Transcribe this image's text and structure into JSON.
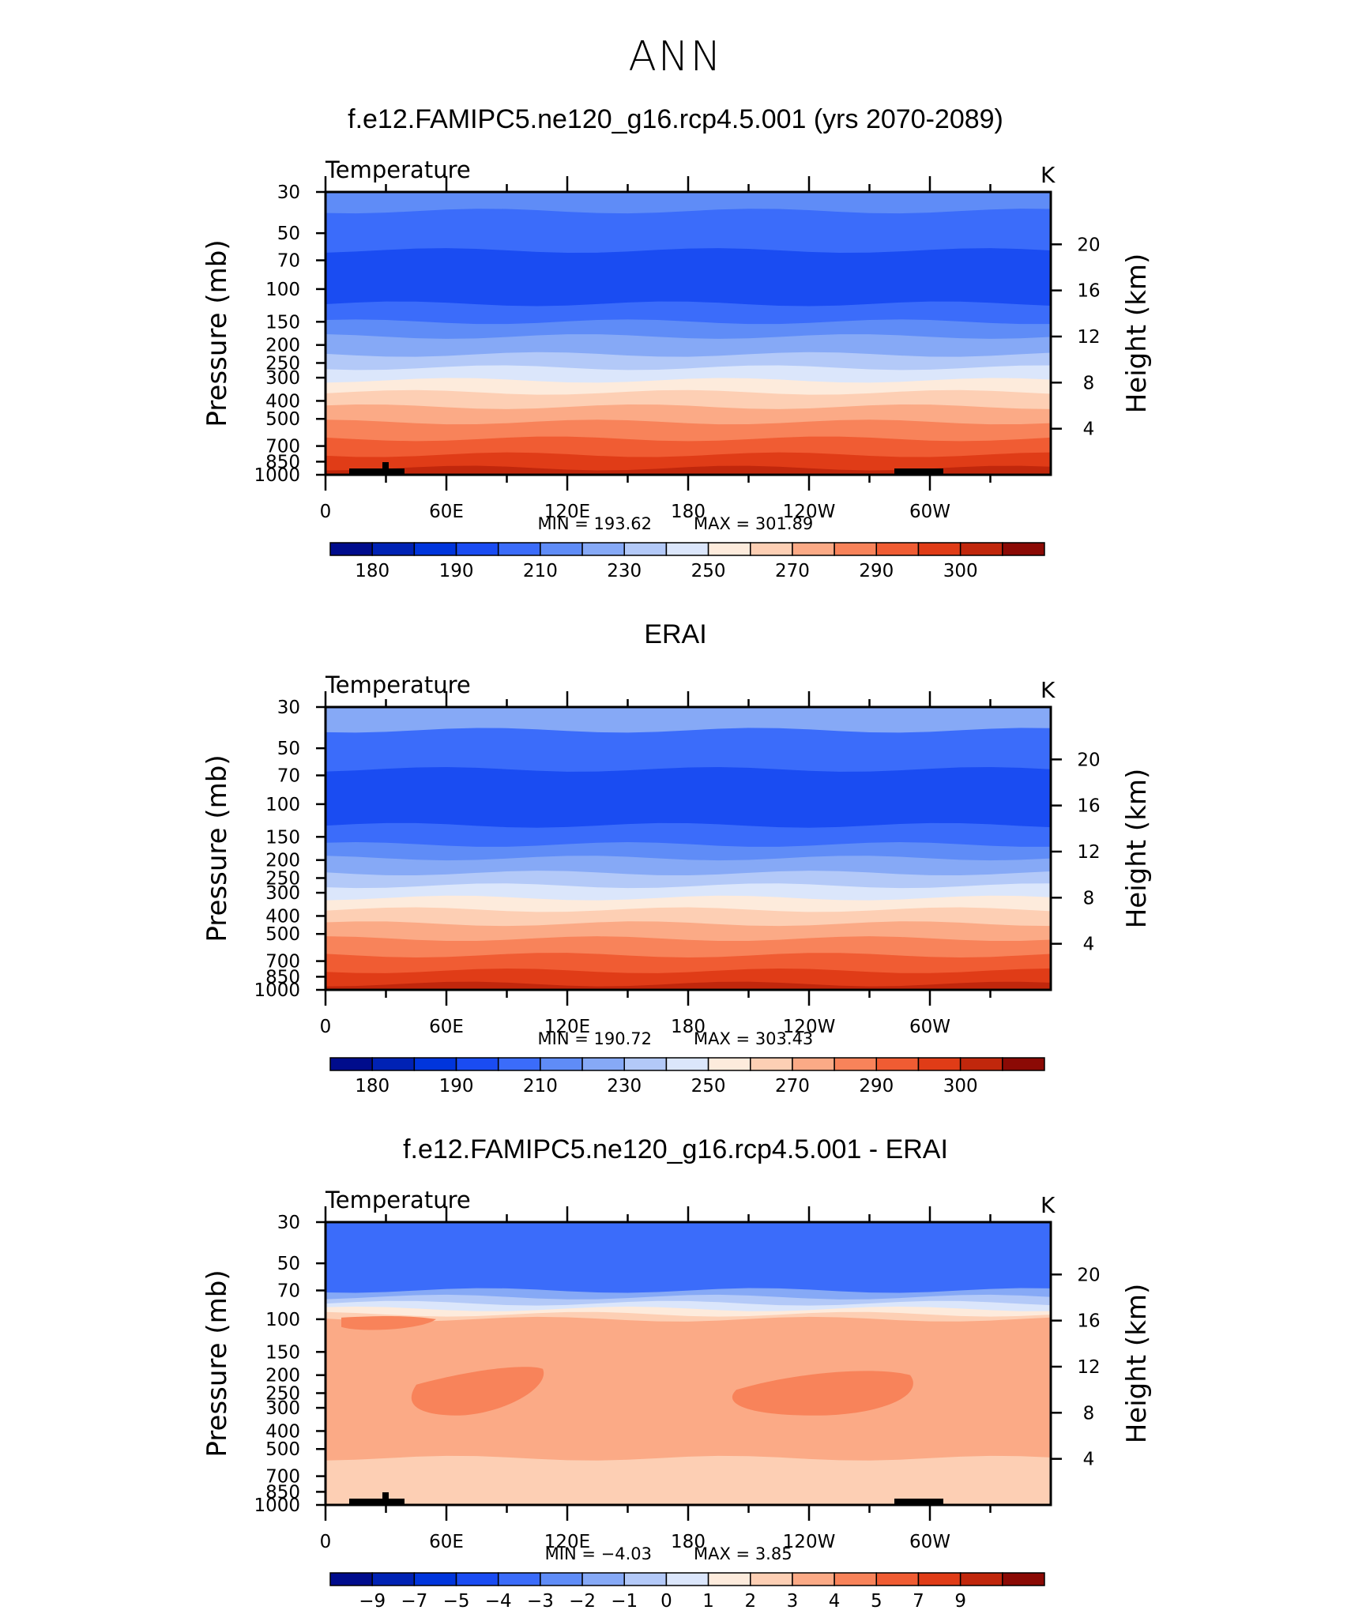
{
  "page_title": "ANN",
  "palettes": {
    "abs": [
      "#000c8c",
      "#0022b4",
      "#0035dc",
      "#1a4cf2",
      "#3b6cfa",
      "#5f8cf7",
      "#86a9f6",
      "#b3c9f8",
      "#dbe6fb",
      "#fdebdc",
      "#fdcfb4",
      "#fbaa86",
      "#f8835a",
      "#f05c33",
      "#e03c17",
      "#c1270c",
      "#8b0a05"
    ],
    "diff": [
      "#000c8c",
      "#0022b4",
      "#0035dc",
      "#1a4cf2",
      "#3b6cfa",
      "#5f8cf7",
      "#86a9f6",
      "#b3c9f8",
      "#dbe6fb",
      "#fdebdc",
      "#fdcfb4",
      "#fbaa86",
      "#f8835a",
      "#f05c33",
      "#e03c17",
      "#c1270c",
      "#8b0a05"
    ]
  },
  "chart_data": [
    {
      "type": "heatmap",
      "title": "f.e12.FAMIPC5.ne120_g16.rcp4.5.001 (yrs 2070-2089)",
      "subtitle": "Temperature",
      "units": "K",
      "ylabel": "Pressure (mb)",
      "y2label": "Height (km)",
      "x_ticks": [
        "0",
        "60E",
        "120E",
        "180",
        "120W",
        "60W"
      ],
      "y_ticks": [
        "30",
        "50",
        "70",
        "100",
        "150",
        "200",
        "250",
        "300",
        "400",
        "500",
        "700",
        "850",
        "1000"
      ],
      "y2_ticks": [
        "20",
        "16",
        "12",
        "8",
        "4"
      ],
      "stats": {
        "min_label": "MIN",
        "min": "193.62",
        "max_label": "MAX",
        "max": "301.89"
      },
      "colorbar_labels": [
        "180",
        "190",
        "210",
        "230",
        "250",
        "270",
        "290",
        "300"
      ],
      "palette": "abs",
      "bands": [
        {
          "p": 30,
          "c": 5
        },
        {
          "p": 38,
          "c": 4
        },
        {
          "p": 62,
          "c": 3
        },
        {
          "p": 120,
          "c": 4
        },
        {
          "p": 150,
          "c": 5
        },
        {
          "p": 180,
          "c": 6
        },
        {
          "p": 225,
          "c": 7
        },
        {
          "p": 265,
          "c": 8
        },
        {
          "p": 310,
          "c": 9
        },
        {
          "p": 360,
          "c": 10
        },
        {
          "p": 430,
          "c": 11
        },
        {
          "p": 520,
          "c": 12
        },
        {
          "p": 640,
          "c": 13
        },
        {
          "p": 780,
          "c": 14
        },
        {
          "p": 920,
          "c": 15
        },
        {
          "p": 1000,
          "c": 15
        }
      ]
    },
    {
      "type": "heatmap",
      "title": "ERAI",
      "subtitle": "Temperature",
      "units": "K",
      "ylabel": "Pressure (mb)",
      "y2label": "Height (km)",
      "x_ticks": [
        "0",
        "60E",
        "120E",
        "180",
        "120W",
        "60W"
      ],
      "y_ticks": [
        "30",
        "50",
        "70",
        "100",
        "150",
        "200",
        "250",
        "300",
        "400",
        "500",
        "700",
        "850",
        "1000"
      ],
      "y2_ticks": [
        "20",
        "16",
        "12",
        "8",
        "4"
      ],
      "stats": {
        "min_label": "MIN",
        "min": "190.72",
        "max_label": "MAX",
        "max": "303.43"
      },
      "colorbar_labels": [
        "180",
        "190",
        "210",
        "230",
        "250",
        "270",
        "290",
        "300"
      ],
      "palette": "abs",
      "bands": [
        {
          "p": 30,
          "c": 6
        },
        {
          "p": 40,
          "c": 4
        },
        {
          "p": 65,
          "c": 3
        },
        {
          "p": 130,
          "c": 4
        },
        {
          "p": 165,
          "c": 5
        },
        {
          "p": 195,
          "c": 6
        },
        {
          "p": 235,
          "c": 7
        },
        {
          "p": 275,
          "c": 8
        },
        {
          "p": 320,
          "c": 9
        },
        {
          "p": 370,
          "c": 10
        },
        {
          "p": 440,
          "c": 11
        },
        {
          "p": 530,
          "c": 12
        },
        {
          "p": 650,
          "c": 13
        },
        {
          "p": 790,
          "c": 14
        },
        {
          "p": 930,
          "c": 15
        },
        {
          "p": 1000,
          "c": 15
        }
      ]
    },
    {
      "type": "heatmap",
      "title": "f.e12.FAMIPC5.ne120_g16.rcp4.5.001 - ERAI",
      "subtitle": "Temperature",
      "units": "K",
      "ylabel": "Pressure (mb)",
      "y2label": "Height (km)",
      "x_ticks": [
        "0",
        "60E",
        "120E",
        "180",
        "120W",
        "60W"
      ],
      "y_ticks": [
        "30",
        "50",
        "70",
        "100",
        "150",
        "200",
        "250",
        "300",
        "400",
        "500",
        "700",
        "850",
        "1000"
      ],
      "y2_ticks": [
        "20",
        "16",
        "12",
        "8",
        "4"
      ],
      "stats": {
        "min_label": "MIN",
        "min": "−4.03",
        "max_label": "MAX",
        "max": "3.85"
      },
      "colorbar_labels": [
        "−9",
        "−7",
        "−5",
        "−4",
        "−3",
        "−2",
        "−1",
        "0",
        "1",
        "2",
        "3",
        "4",
        "5",
        "7",
        "9"
      ],
      "palette": "diff",
      "bands": [
        {
          "p": 30,
          "c": 4
        },
        {
          "p": 70,
          "c": 6
        },
        {
          "p": 76,
          "c": 7
        },
        {
          "p": 82,
          "c": 8
        },
        {
          "p": 88,
          "c": 9
        },
        {
          "p": 94,
          "c": 10
        },
        {
          "p": 100,
          "c": 11
        },
        {
          "p": 500,
          "c": 11
        },
        {
          "p": 560,
          "c": 10
        },
        {
          "p": 1000,
          "c": 10
        }
      ]
    }
  ]
}
